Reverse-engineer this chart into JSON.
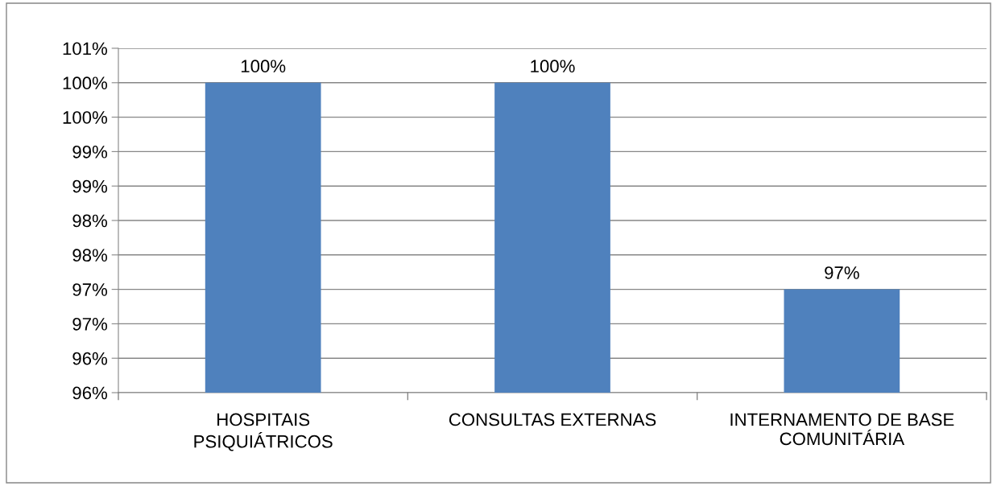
{
  "chart_data": {
    "type": "bar",
    "categories": [
      "HOSPITAIS\nPSIQUIÁTRICOS",
      "CONSULTAS EXTERNAS",
      "INTERNAMENTO DE BASE\nCOMUNITÁRIA"
    ],
    "values": [
      100,
      100,
      97
    ],
    "value_labels": [
      "100%",
      "100%",
      "97%"
    ],
    "color": "#4f81bd",
    "ylim": [
      95.5,
      100.5
    ],
    "yticks": [
      {
        "value": 95.5,
        "label": "96%"
      },
      {
        "value": 96,
        "label": "96%"
      },
      {
        "value": 96.5,
        "label": "97%"
      },
      {
        "value": 97,
        "label": "97%"
      },
      {
        "value": 97.5,
        "label": "98%"
      },
      {
        "value": 98,
        "label": "98%"
      },
      {
        "value": 98.5,
        "label": "99%"
      },
      {
        "value": 99,
        "label": "99%"
      },
      {
        "value": 99.5,
        "label": "100%"
      },
      {
        "value": 100,
        "label": "100%"
      },
      {
        "value": 100.5,
        "label": "101%"
      }
    ],
    "grid": "y",
    "legend": false
  }
}
